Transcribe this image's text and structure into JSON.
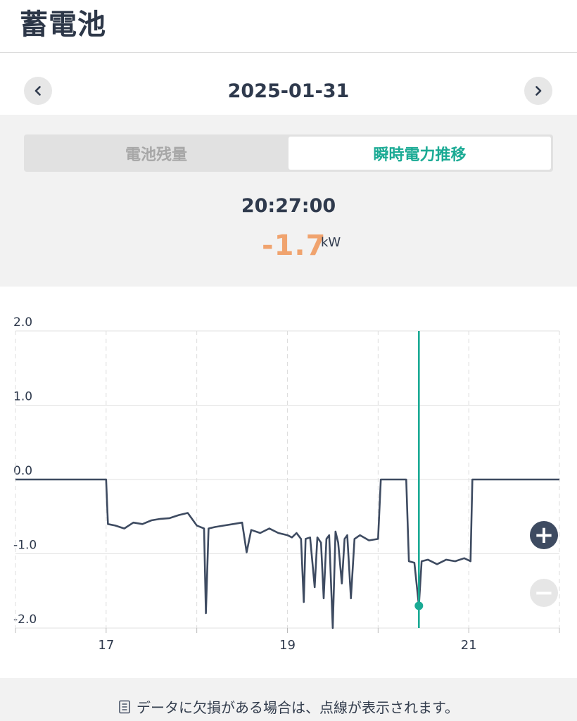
{
  "page": {
    "title": "蓄電池"
  },
  "date_nav": {
    "date": "2025-01-31"
  },
  "tabs": [
    {
      "label": "電池残量",
      "active": false
    },
    {
      "label": "瞬時電力推移",
      "active": true
    }
  ],
  "readout": {
    "time": "20:27:00",
    "value": "-1.7",
    "unit": "kW"
  },
  "colors": {
    "accent": "#1aaa94",
    "value": "#f0a36e",
    "line": "#3e4b61"
  },
  "chart_data": {
    "type": "line",
    "yticks": [
      "2.0",
      "1.0",
      "0.0",
      "-1.0",
      "-2.0"
    ],
    "xticks": [
      "17",
      "19",
      "21"
    ],
    "ylim": [
      -2.0,
      2.0
    ],
    "xlim": [
      16.0,
      22.0
    ],
    "x_unit": "hour",
    "grid": true,
    "cursor_x": 20.45,
    "cursor_y": -1.7,
    "series": [
      {
        "points": [
          [
            16.0,
            0.0
          ],
          [
            17.0,
            0.0
          ],
          [
            17.02,
            -0.6
          ],
          [
            17.1,
            -0.62
          ],
          [
            17.2,
            -0.66
          ],
          [
            17.3,
            -0.58
          ],
          [
            17.4,
            -0.6
          ],
          [
            17.5,
            -0.55
          ],
          [
            17.6,
            -0.53
          ],
          [
            17.7,
            -0.52
          ],
          [
            17.8,
            -0.48
          ],
          [
            17.9,
            -0.45
          ],
          [
            18.0,
            -0.62
          ],
          [
            18.08,
            -0.66
          ],
          [
            18.1,
            -1.8
          ],
          [
            18.13,
            -0.66
          ],
          [
            18.2,
            -0.64
          ],
          [
            18.3,
            -0.62
          ],
          [
            18.4,
            -0.6
          ],
          [
            18.5,
            -0.58
          ],
          [
            18.55,
            -0.98
          ],
          [
            18.6,
            -0.68
          ],
          [
            18.7,
            -0.72
          ],
          [
            18.8,
            -0.66
          ],
          [
            18.9,
            -0.72
          ],
          [
            19.0,
            -0.75
          ],
          [
            19.05,
            -0.78
          ],
          [
            19.1,
            -0.72
          ],
          [
            19.15,
            -0.8
          ],
          [
            19.18,
            -1.65
          ],
          [
            19.2,
            -0.8
          ],
          [
            19.25,
            -0.78
          ],
          [
            19.3,
            -1.45
          ],
          [
            19.33,
            -0.78
          ],
          [
            19.37,
            -0.85
          ],
          [
            19.4,
            -1.6
          ],
          [
            19.43,
            -0.8
          ],
          [
            19.46,
            -0.75
          ],
          [
            19.5,
            -2.0
          ],
          [
            19.53,
            -0.7
          ],
          [
            19.56,
            -0.85
          ],
          [
            19.6,
            -1.4
          ],
          [
            19.63,
            -0.8
          ],
          [
            19.66,
            -0.75
          ],
          [
            19.7,
            -1.6
          ],
          [
            19.74,
            -0.8
          ],
          [
            19.8,
            -0.75
          ],
          [
            19.9,
            -0.82
          ],
          [
            20.0,
            -0.8
          ],
          [
            20.03,
            0.0
          ],
          [
            20.31,
            0.0
          ],
          [
            20.34,
            -1.1
          ],
          [
            20.4,
            -1.12
          ],
          [
            20.45,
            -1.7
          ],
          [
            20.48,
            -1.1
          ],
          [
            20.55,
            -1.08
          ],
          [
            20.65,
            -1.14
          ],
          [
            20.75,
            -1.08
          ],
          [
            20.85,
            -1.1
          ],
          [
            20.95,
            -1.06
          ],
          [
            21.02,
            -1.1
          ],
          [
            21.04,
            0.0
          ],
          [
            22.0,
            0.0
          ]
        ]
      }
    ]
  },
  "zoom": {
    "in": "+",
    "out": "−"
  },
  "footer": {
    "note": "データに欠損がある場合は、点線が表示されます。"
  }
}
